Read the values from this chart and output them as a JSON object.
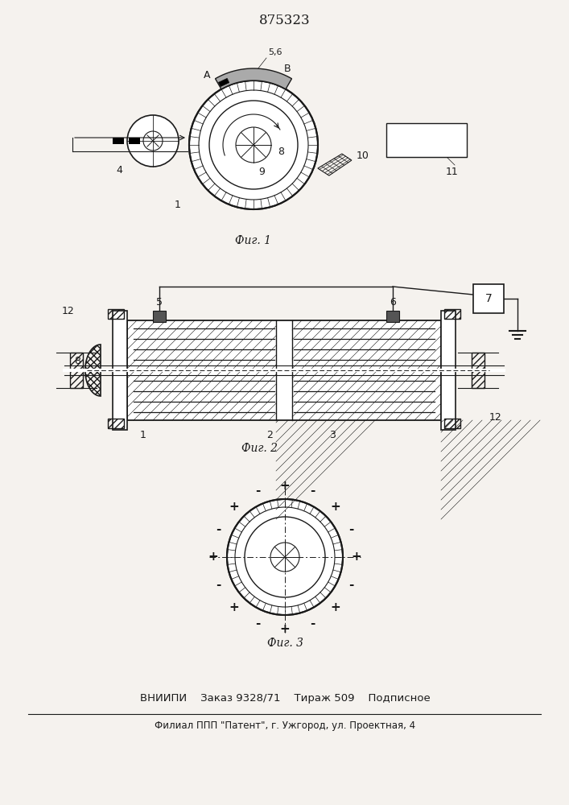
{
  "title": "875323",
  "fig1_label": "Фиг. 1",
  "fig2_label": "Фиг. 2",
  "fig3_label": "Фиг. 3",
  "footer_line1": "ВНИИПИ    Заказ 9328/71    Тираж 509    Подписное",
  "footer_line2": "Филиал ППП \"Патент\", г. Ужгород, ул. Проектная, 4",
  "bg_color": "#f5f2ee",
  "line_color": "#1a1a1a"
}
